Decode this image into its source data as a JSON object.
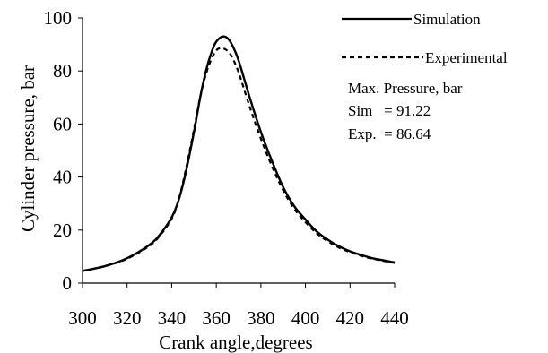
{
  "chart_data": {
    "type": "line",
    "title": "",
    "xlabel": "Crank angle,degrees",
    "ylabel": "Cylinder pressure, bar",
    "xlim": [
      300,
      440
    ],
    "ylim": [
      0,
      100
    ],
    "x_ticks": [
      "300",
      "320",
      "340",
      "360",
      "380",
      "400",
      "420",
      "440"
    ],
    "y_ticks": [
      "0",
      "20",
      "40",
      "60",
      "80",
      "100"
    ],
    "grid": false,
    "legend_position": "top-right",
    "series": [
      {
        "name": "Simulation",
        "style": "solid",
        "x": [
          300,
          310,
          320,
          330,
          335,
          340,
          343,
          346,
          350,
          353,
          356,
          359,
          361,
          363,
          365,
          367,
          370,
          375,
          380,
          385,
          390,
          395,
          400,
          405,
          410,
          415,
          420,
          425,
          430,
          435,
          440
        ],
        "y": [
          4.6,
          6.4,
          9.4,
          14.4,
          18.6,
          24.8,
          31.0,
          40.5,
          57.0,
          71.0,
          82.0,
          89.5,
          92.0,
          93.0,
          92.4,
          90.0,
          84.0,
          70.0,
          57.0,
          46.0,
          36.2,
          29.0,
          24.0,
          19.5,
          16.4,
          13.9,
          12.0,
          10.6,
          9.4,
          8.6,
          7.8
        ]
      },
      {
        "name": "Experimental",
        "style": "dashed",
        "x": [
          300,
          310,
          320,
          330,
          335,
          340,
          343,
          346,
          350,
          353,
          356,
          359,
          361,
          363,
          365,
          367,
          370,
          375,
          380,
          385,
          390,
          395,
          400,
          405,
          410,
          415,
          420,
          425,
          430,
          435,
          440
        ],
        "y": [
          4.6,
          6.4,
          9.2,
          14.0,
          18.2,
          24.3,
          31.0,
          41.5,
          58.0,
          71.0,
          80.5,
          86.5,
          88.4,
          88.5,
          87.6,
          85.3,
          79.5,
          66.5,
          54.5,
          44.0,
          35.0,
          28.0,
          23.0,
          18.8,
          15.8,
          13.4,
          11.7,
          10.3,
          9.2,
          8.4,
          7.6
        ]
      }
    ],
    "annotation": {
      "title": "Max. Pressure, bar",
      "lines": [
        "Sim   = 91.22",
        "Exp.  = 86.64"
      ]
    }
  }
}
